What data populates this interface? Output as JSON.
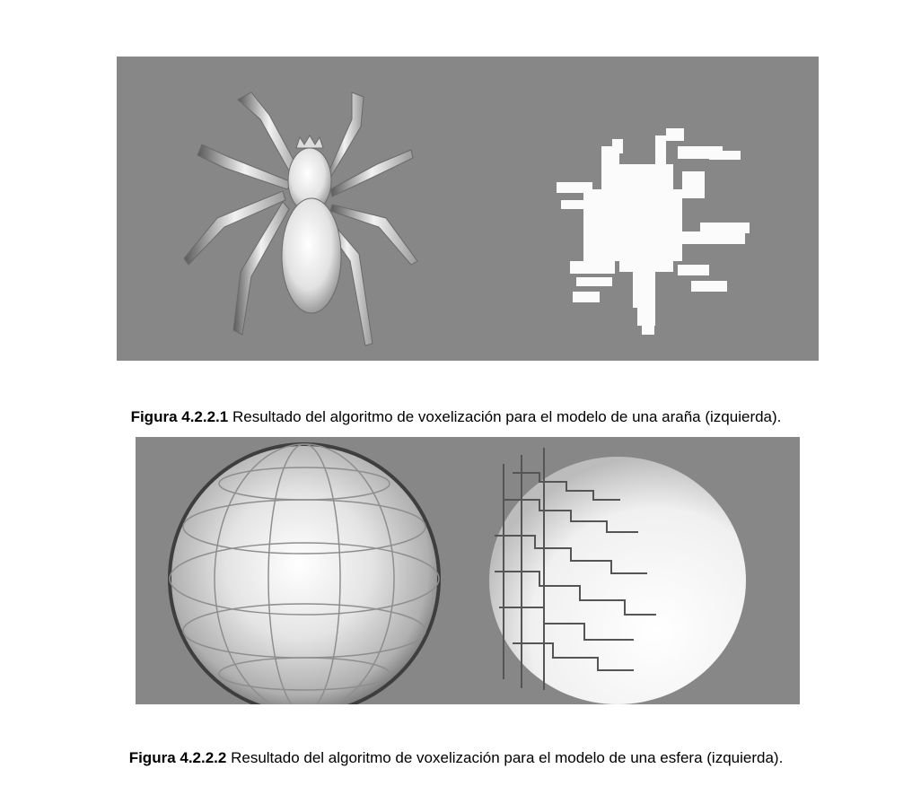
{
  "figures": [
    {
      "label": "Figura 4.2.2.1",
      "text": " Resultado del algoritmo de voxelización para el modelo de una araña (izquierda)."
    },
    {
      "label": "Figura 4.2.2.2",
      "text": " Resultado del algoritmo de voxelización para el modelo de una esfera (izquierda)."
    }
  ],
  "colors": {
    "background": "#878787",
    "model_light": "#f4f4f4",
    "model_shade": "#4a4a4a"
  }
}
